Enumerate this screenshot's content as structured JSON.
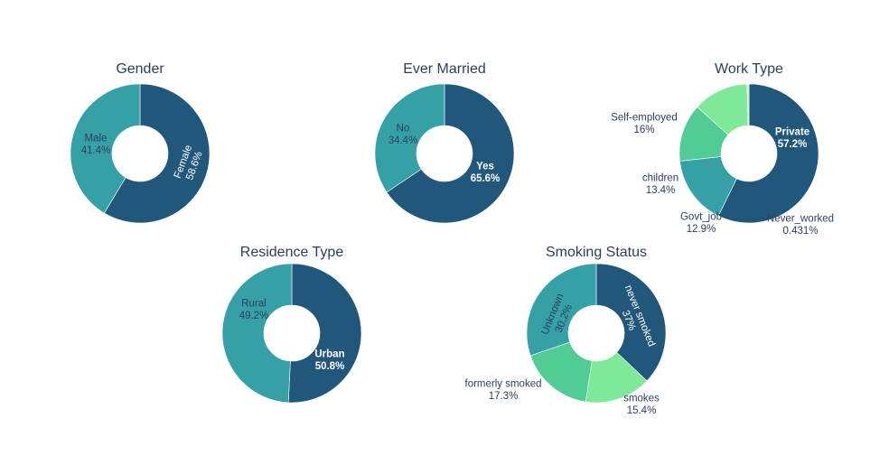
{
  "chart_data": [
    {
      "type": "pie",
      "title": "Gender",
      "labels": [
        "Female",
        "Male"
      ],
      "values": [
        58.6,
        41.4
      ],
      "value_labels": [
        "58.6%",
        "41.4%"
      ],
      "colors": [
        "#21577a",
        "#35a1a6"
      ],
      "hole": 0.4
    },
    {
      "type": "pie",
      "title": "Ever Married",
      "labels": [
        "Yes",
        "No"
      ],
      "values": [
        65.6,
        34.4
      ],
      "value_labels": [
        "65.6%",
        "34.4%"
      ],
      "colors": [
        "#21577a",
        "#35a1a6"
      ],
      "hole": 0.4
    },
    {
      "type": "pie",
      "title": "Work Type",
      "labels": [
        "Private",
        "Self-employed",
        "children",
        "Govt_job",
        "Never_worked"
      ],
      "values": [
        57.2,
        16,
        13.4,
        12.9,
        0.431
      ],
      "value_labels": [
        "57.2%",
        "16%",
        "13.4%",
        "12.9%",
        "0.431%"
      ],
      "colors": [
        "#21577a",
        "#35a1a6",
        "#52cc95",
        "#7eea99",
        "#bdf2c5"
      ],
      "hole": 0.4
    },
    {
      "type": "pie",
      "title": "Residence Type",
      "labels": [
        "Urban",
        "Rural"
      ],
      "values": [
        50.8,
        49.2
      ],
      "value_labels": [
        "50.8%",
        "49.2%"
      ],
      "colors": [
        "#21577a",
        "#35a1a6"
      ],
      "hole": 0.4
    },
    {
      "type": "pie",
      "title": "Smoking Status",
      "labels": [
        "never smoked",
        "smokes",
        "formerly smoked",
        "Unknown"
      ],
      "values": [
        37,
        15.4,
        17.3,
        30.2
      ],
      "value_labels": [
        "37%",
        "15.4%",
        "17.3%",
        "30.2%"
      ],
      "colors": [
        "#21577a",
        "#7eea99",
        "#52cc95",
        "#35a1a6"
      ],
      "hole": 0.4
    }
  ]
}
